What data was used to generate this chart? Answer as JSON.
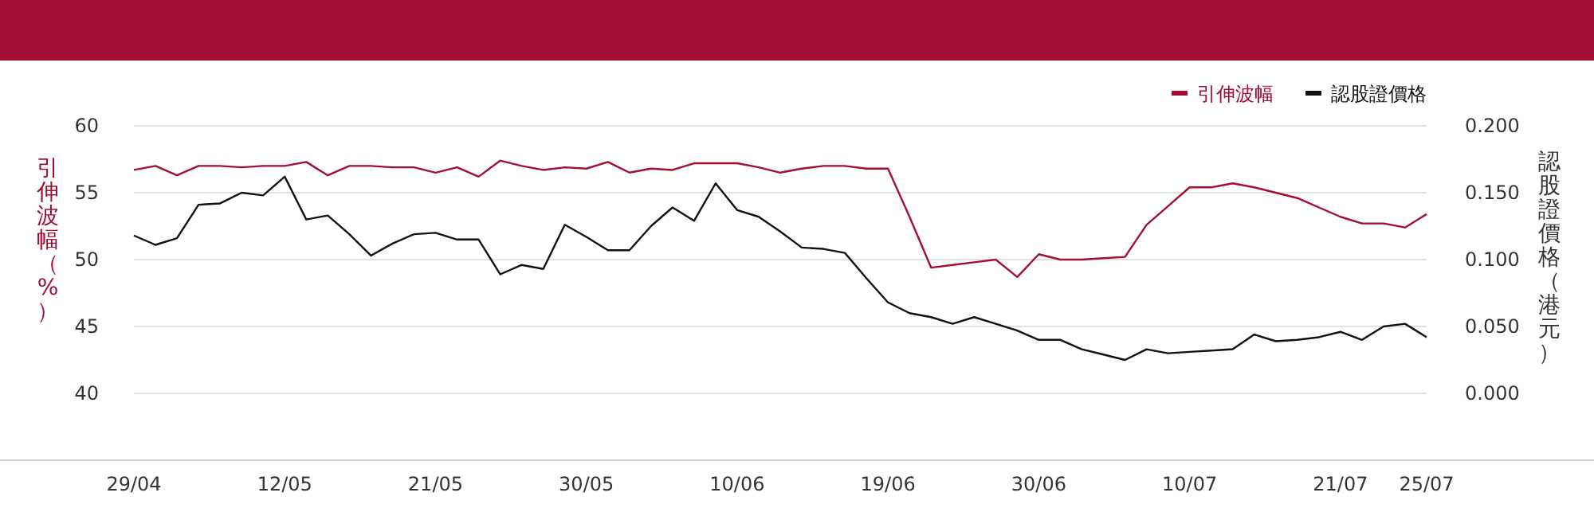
{
  "chart_data": {
    "type": "line",
    "categories": [
      "29/04",
      null,
      null,
      null,
      null,
      null,
      null,
      "12/05",
      null,
      null,
      null,
      null,
      null,
      null,
      "21/05",
      null,
      null,
      null,
      null,
      null,
      null,
      "30/05",
      null,
      null,
      null,
      null,
      null,
      null,
      "10/06",
      null,
      null,
      null,
      null,
      null,
      null,
      "19/06",
      null,
      null,
      null,
      null,
      null,
      null,
      "30/06",
      null,
      null,
      null,
      null,
      null,
      null,
      "10/07",
      null,
      null,
      null,
      null,
      null,
      null,
      "21/07",
      null,
      null,
      null,
      "25/07"
    ],
    "series": [
      {
        "name": "引伸波幅",
        "color": "#a50e33",
        "values": [
          56.7,
          57.0,
          56.3,
          57.0,
          57.0,
          56.9,
          57.0,
          57.0,
          57.3,
          56.3,
          57.0,
          57.0,
          56.9,
          56.9,
          56.5,
          56.9,
          56.2,
          57.4,
          57.0,
          56.7,
          56.9,
          56.8,
          57.3,
          56.5,
          56.8,
          56.7,
          57.2,
          57.2,
          57.2,
          56.9,
          56.5,
          56.8,
          57.0,
          57.0,
          56.8,
          56.8,
          53.2,
          49.4,
          49.6,
          49.8,
          50.0,
          48.7,
          50.4,
          50.0,
          50.0,
          50.1,
          50.2,
          52.6,
          54.0,
          55.4,
          55.4,
          55.7,
          55.4,
          55.0,
          54.6,
          53.9,
          53.2,
          52.7,
          52.7,
          52.4,
          53.4
        ]
      },
      {
        "name": "認股證價格",
        "color": "#111111",
        "axis": "y2",
        "values": [
          0.118,
          0.111,
          0.116,
          0.141,
          0.142,
          0.15,
          0.148,
          0.162,
          0.13,
          0.133,
          0.119,
          0.103,
          0.112,
          0.119,
          0.12,
          0.115,
          0.115,
          0.089,
          0.096,
          0.093,
          0.126,
          0.117,
          0.107,
          0.107,
          0.125,
          0.139,
          0.129,
          0.157,
          0.137,
          0.132,
          0.121,
          0.109,
          0.108,
          0.105,
          0.086,
          0.068,
          0.06,
          0.057,
          0.052,
          0.057,
          0.052,
          0.047,
          0.04,
          0.04,
          0.033,
          0.029,
          0.025,
          0.033,
          0.03,
          0.031,
          0.032,
          0.033,
          0.044,
          0.039,
          0.04,
          0.042,
          0.046,
          0.04,
          0.05,
          0.052,
          0.042
        ]
      }
    ],
    "ylabel": "引伸波幅（%）",
    "y2label": "認股證價格（港元）",
    "ylim": [
      35,
      60
    ],
    "yticks": [
      40,
      45,
      50,
      55,
      60
    ],
    "y2lim": [
      -0.05,
      0.2
    ],
    "y2ticks": [
      {
        "value": 0,
        "label": "0.000"
      },
      {
        "value": 0.05,
        "label": "0.050"
      },
      {
        "value": 0.1,
        "label": "0.100"
      },
      {
        "value": 0.15,
        "label": "0.150"
      },
      {
        "value": 0.2,
        "label": "0.200"
      }
    ],
    "grid": "y",
    "legend": "top right"
  }
}
